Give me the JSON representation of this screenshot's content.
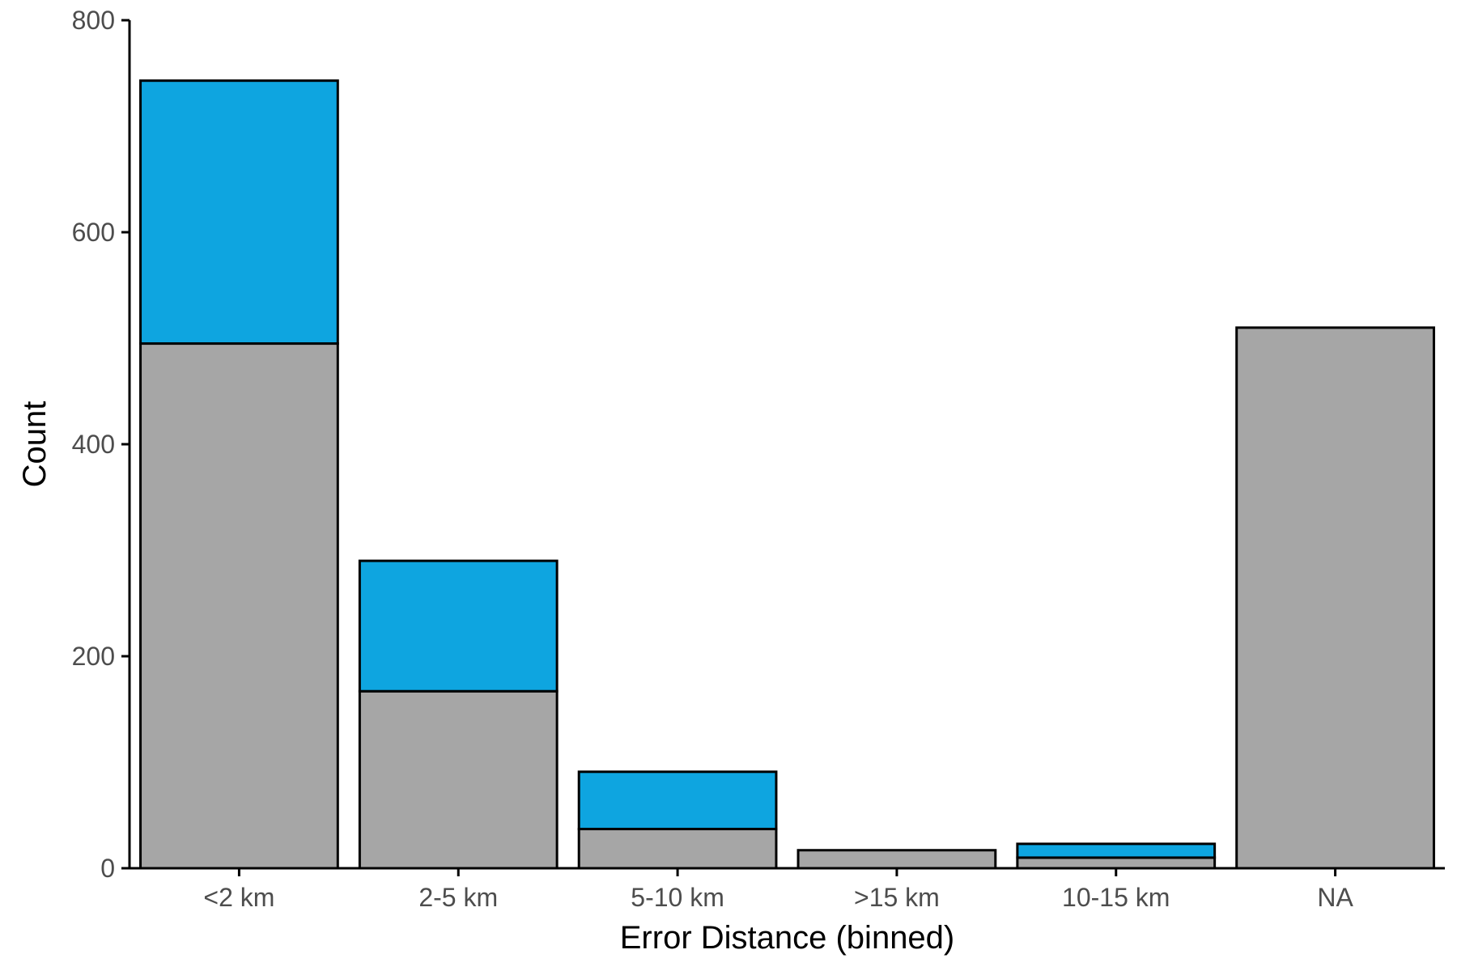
{
  "chart_data": {
    "type": "bar",
    "stacked": true,
    "title": "",
    "xlabel": "Error Distance (binned)",
    "ylabel": "Count",
    "categories": [
      "<2 km",
      "2-5 km",
      "5-10 km",
      ">15 km",
      "10-15 km",
      "NA"
    ],
    "series": [
      {
        "color": "#a6a6a6",
        "values": [
          495,
          167,
          37,
          17,
          10,
          510
        ]
      },
      {
        "color": "#0ea5e0",
        "values": [
          248,
          123,
          54,
          0,
          13,
          0
        ]
      }
    ],
    "ylim": [
      0,
      800
    ],
    "yticks": [
      0,
      200,
      400,
      600,
      800
    ],
    "grid": false,
    "legend": "none"
  }
}
